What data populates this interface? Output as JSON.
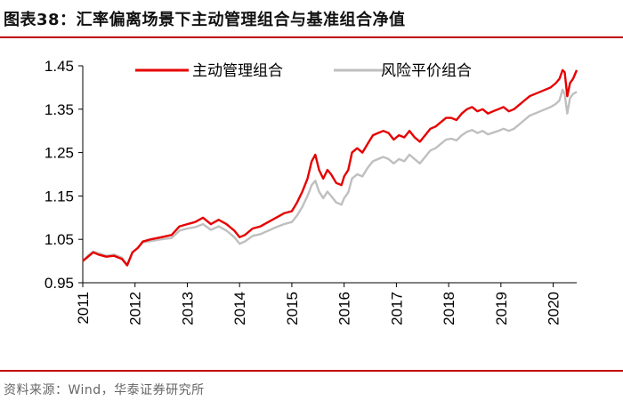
{
  "header": {
    "figure_label": "图表38：",
    "title": "汇率偏离场景下主动管理组合与基准组合净值"
  },
  "footer": {
    "source": "资料来源：Wind，华泰证券研究所"
  },
  "colors": {
    "accent_rule": "#c00000",
    "series_active": "#e60000",
    "series_benchmark": "#bfbfbf"
  },
  "chart_data": {
    "type": "line",
    "title": "",
    "xlabel": "",
    "ylabel": "",
    "ylim": [
      0.95,
      1.45
    ],
    "yticks": [
      "0.95",
      "1.05",
      "1.15",
      "1.25",
      "1.35",
      "1.45"
    ],
    "xticks": [
      "2011",
      "2012",
      "2013",
      "2014",
      "2015",
      "2016",
      "2017",
      "2018",
      "2019",
      "2020"
    ],
    "xlim": [
      2011.0,
      2020.45
    ],
    "grid": false,
    "legend_position": "top",
    "series": [
      {
        "name": "主动管理组合",
        "color": "#e60000",
        "x": [
          2011.0,
          2011.1,
          2011.2,
          2011.3,
          2011.45,
          2011.6,
          2011.75,
          2011.85,
          2011.95,
          2012.05,
          2012.15,
          2012.3,
          2012.5,
          2012.7,
          2012.85,
          2013.0,
          2013.15,
          2013.3,
          2013.45,
          2013.6,
          2013.75,
          2013.9,
          2014.0,
          2014.1,
          2014.25,
          2014.4,
          2014.55,
          2014.7,
          2014.85,
          2015.0,
          2015.1,
          2015.2,
          2015.3,
          2015.38,
          2015.45,
          2015.52,
          2015.6,
          2015.68,
          2015.75,
          2015.85,
          2015.95,
          2016.0,
          2016.08,
          2016.15,
          2016.25,
          2016.35,
          2016.45,
          2016.55,
          2016.65,
          2016.75,
          2016.85,
          2016.95,
          2017.05,
          2017.15,
          2017.25,
          2017.35,
          2017.45,
          2017.55,
          2017.65,
          2017.75,
          2017.85,
          2017.95,
          2018.05,
          2018.15,
          2018.25,
          2018.35,
          2018.45,
          2018.55,
          2018.65,
          2018.75,
          2018.85,
          2018.95,
          2019.05,
          2019.15,
          2019.25,
          2019.35,
          2019.45,
          2019.55,
          2019.65,
          2019.75,
          2019.85,
          2019.95,
          2020.05,
          2020.12,
          2020.18,
          2020.22,
          2020.27,
          2020.32,
          2020.38,
          2020.45
        ],
        "y": [
          1.0,
          1.01,
          1.02,
          1.015,
          1.01,
          1.012,
          1.005,
          0.99,
          1.02,
          1.03,
          1.045,
          1.05,
          1.055,
          1.06,
          1.08,
          1.085,
          1.09,
          1.1,
          1.085,
          1.095,
          1.085,
          1.07,
          1.055,
          1.06,
          1.075,
          1.08,
          1.09,
          1.1,
          1.11,
          1.115,
          1.135,
          1.16,
          1.19,
          1.23,
          1.245,
          1.21,
          1.19,
          1.21,
          1.2,
          1.18,
          1.175,
          1.195,
          1.21,
          1.25,
          1.26,
          1.25,
          1.27,
          1.29,
          1.295,
          1.3,
          1.295,
          1.28,
          1.29,
          1.285,
          1.3,
          1.285,
          1.275,
          1.29,
          1.305,
          1.31,
          1.32,
          1.33,
          1.33,
          1.325,
          1.34,
          1.35,
          1.355,
          1.345,
          1.35,
          1.34,
          1.345,
          1.35,
          1.355,
          1.345,
          1.35,
          1.36,
          1.37,
          1.38,
          1.385,
          1.39,
          1.395,
          1.4,
          1.41,
          1.42,
          1.44,
          1.435,
          1.38,
          1.41,
          1.42,
          1.44
        ]
      },
      {
        "name": "风险平价组合",
        "color": "#bfbfbf",
        "x": [
          2011.0,
          2011.1,
          2011.2,
          2011.3,
          2011.45,
          2011.6,
          2011.75,
          2011.85,
          2011.95,
          2012.05,
          2012.15,
          2012.3,
          2012.5,
          2012.7,
          2012.85,
          2013.0,
          2013.15,
          2013.3,
          2013.45,
          2013.6,
          2013.75,
          2013.9,
          2014.0,
          2014.1,
          2014.25,
          2014.4,
          2014.55,
          2014.7,
          2014.85,
          2015.0,
          2015.1,
          2015.2,
          2015.3,
          2015.38,
          2015.45,
          2015.52,
          2015.6,
          2015.68,
          2015.75,
          2015.85,
          2015.95,
          2016.0,
          2016.08,
          2016.15,
          2016.25,
          2016.35,
          2016.45,
          2016.55,
          2016.65,
          2016.75,
          2016.85,
          2016.95,
          2017.05,
          2017.15,
          2017.25,
          2017.35,
          2017.45,
          2017.55,
          2017.65,
          2017.75,
          2017.85,
          2017.95,
          2018.05,
          2018.15,
          2018.25,
          2018.35,
          2018.45,
          2018.55,
          2018.65,
          2018.75,
          2018.85,
          2018.95,
          2019.05,
          2019.15,
          2019.25,
          2019.35,
          2019.45,
          2019.55,
          2019.65,
          2019.75,
          2019.85,
          2019.95,
          2020.05,
          2020.12,
          2020.18,
          2020.22,
          2020.27,
          2020.32,
          2020.38,
          2020.45
        ],
        "y": [
          1.0,
          1.012,
          1.022,
          1.018,
          1.012,
          1.015,
          1.008,
          0.992,
          1.02,
          1.03,
          1.043,
          1.046,
          1.05,
          1.053,
          1.07,
          1.075,
          1.078,
          1.085,
          1.072,
          1.08,
          1.07,
          1.055,
          1.04,
          1.045,
          1.058,
          1.062,
          1.07,
          1.078,
          1.085,
          1.09,
          1.105,
          1.125,
          1.15,
          1.175,
          1.185,
          1.16,
          1.145,
          1.16,
          1.15,
          1.135,
          1.13,
          1.145,
          1.158,
          1.19,
          1.2,
          1.195,
          1.215,
          1.23,
          1.235,
          1.24,
          1.235,
          1.225,
          1.235,
          1.23,
          1.245,
          1.235,
          1.225,
          1.24,
          1.255,
          1.26,
          1.27,
          1.28,
          1.282,
          1.278,
          1.29,
          1.298,
          1.302,
          1.295,
          1.3,
          1.292,
          1.296,
          1.3,
          1.305,
          1.3,
          1.305,
          1.315,
          1.325,
          1.335,
          1.34,
          1.345,
          1.35,
          1.355,
          1.362,
          1.37,
          1.395,
          1.385,
          1.34,
          1.375,
          1.385,
          1.39
        ]
      }
    ]
  }
}
